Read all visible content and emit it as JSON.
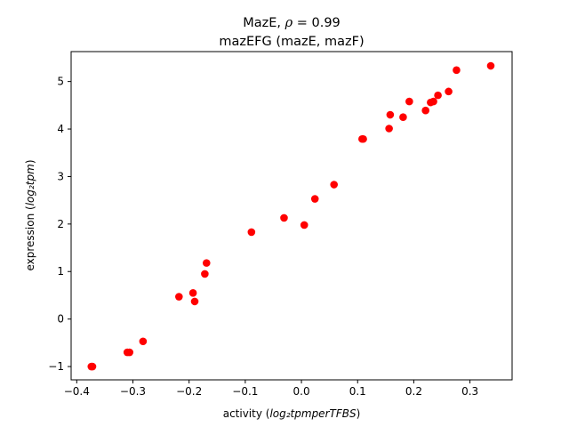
{
  "chart_data": {
    "type": "scatter",
    "title_line1_prefix": "MazE, ",
    "title_rho_symbol": "ρ",
    "title_rho_value": " = 0.99",
    "title_line2": "mazEFG (mazE, mazF)",
    "xlabel_prefix": "activity (",
    "xlabel_math": "log₂tpmperTFBS",
    "xlabel_suffix": ")",
    "ylabel_prefix": "expression (",
    "ylabel_math": "log₂tpm",
    "ylabel_suffix": ")",
    "xlim": [
      -0.41,
      0.375
    ],
    "ylim": [
      -1.28,
      5.63
    ],
    "x_ticks": [
      -0.4,
      -0.3,
      -0.2,
      -0.1,
      0.0,
      0.1,
      0.2,
      0.3
    ],
    "x_tick_labels": [
      "−0.4",
      "−0.3",
      "−0.2",
      "−0.1",
      "0.0",
      "0.1",
      "0.2",
      "0.3"
    ],
    "y_ticks": [
      -1,
      0,
      1,
      2,
      3,
      4,
      5
    ],
    "y_tick_labels": [
      "−1",
      "0",
      "1",
      "2",
      "3",
      "4",
      "5"
    ],
    "grid": false,
    "marker_color": "#ff0000",
    "points": [
      {
        "x": -0.374,
        "y": -1.0
      },
      {
        "x": -0.372,
        "y": -1.0
      },
      {
        "x": -0.31,
        "y": -0.7
      },
      {
        "x": -0.306,
        "y": -0.7
      },
      {
        "x": -0.282,
        "y": -0.47
      },
      {
        "x": -0.218,
        "y": 0.47
      },
      {
        "x": -0.193,
        "y": 0.55
      },
      {
        "x": -0.19,
        "y": 0.37
      },
      {
        "x": -0.172,
        "y": 0.95
      },
      {
        "x": -0.169,
        "y": 1.18
      },
      {
        "x": -0.089,
        "y": 1.83
      },
      {
        "x": -0.031,
        "y": 2.13
      },
      {
        "x": 0.005,
        "y": 1.98
      },
      {
        "x": 0.024,
        "y": 2.53
      },
      {
        "x": 0.058,
        "y": 2.83
      },
      {
        "x": 0.108,
        "y": 3.79
      },
      {
        "x": 0.11,
        "y": 3.79
      },
      {
        "x": 0.156,
        "y": 4.01
      },
      {
        "x": 0.158,
        "y": 4.3
      },
      {
        "x": 0.181,
        "y": 4.25
      },
      {
        "x": 0.192,
        "y": 4.58
      },
      {
        "x": 0.221,
        "y": 4.39
      },
      {
        "x": 0.23,
        "y": 4.56
      },
      {
        "x": 0.235,
        "y": 4.58
      },
      {
        "x": 0.243,
        "y": 4.71
      },
      {
        "x": 0.262,
        "y": 4.79
      },
      {
        "x": 0.276,
        "y": 5.24
      },
      {
        "x": 0.337,
        "y": 5.33
      }
    ]
  }
}
